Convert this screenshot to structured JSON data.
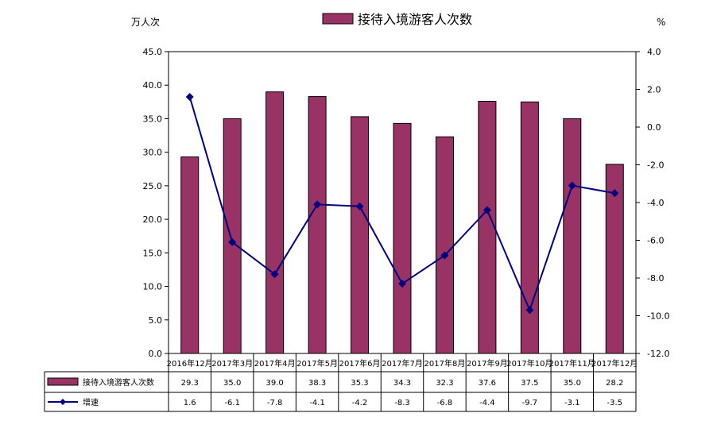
{
  "chart_data": {
    "type": "bar",
    "categories": [
      "2016年12月",
      "2017年3月",
      "2017年4月",
      "2017年5月",
      "2017年6月",
      "2017年7月",
      "2017年8月",
      "2017年9月",
      "2017年10月",
      "2017年11月",
      "2017年12月"
    ],
    "series": [
      {
        "name": "接待入境游客人次数",
        "type": "bar",
        "axis": "left",
        "values": [
          29.3,
          35.0,
          39.0,
          38.3,
          35.3,
          34.3,
          32.3,
          37.6,
          37.5,
          35.0,
          28.2
        ],
        "labels": [
          "29.3",
          "35.0",
          "39.0",
          "38.3",
          "35.3",
          "34.3",
          "32.3",
          "37.6",
          "37.5",
          "35.0",
          "28.2"
        ],
        "color": "#993366"
      },
      {
        "name": "增速",
        "type": "line",
        "axis": "right",
        "values": [
          1.6,
          -6.1,
          -7.8,
          -4.1,
          -4.2,
          -8.3,
          -6.8,
          -4.4,
          -9.7,
          -3.1,
          -3.5
        ],
        "labels": [
          "1.6",
          "-6.1",
          "-7.8",
          "-4.1",
          "-4.2",
          "-8.3",
          "-6.8",
          "-4.4",
          "-9.7",
          "-3.1",
          "-3.5"
        ],
        "color": "#000080"
      }
    ],
    "ylabel_left": "万人次",
    "ylabel_right": "%",
    "ylim_left": [
      0,
      45
    ],
    "ylim_right": [
      -12,
      4
    ],
    "yticks_left": [
      "0.0",
      "5.0",
      "10.0",
      "15.0",
      "20.0",
      "25.0",
      "30.0",
      "35.0",
      "40.0",
      "45.0"
    ],
    "yticks_right": [
      "-12.0",
      "-10.0",
      "-8.0",
      "-6.0",
      "-4.0",
      "-2.0",
      "0.0",
      "2.0",
      "4.0"
    ],
    "legend_title": "接待入境游客人次数",
    "legend_position": "top-center",
    "grid": false,
    "data_table": true
  }
}
